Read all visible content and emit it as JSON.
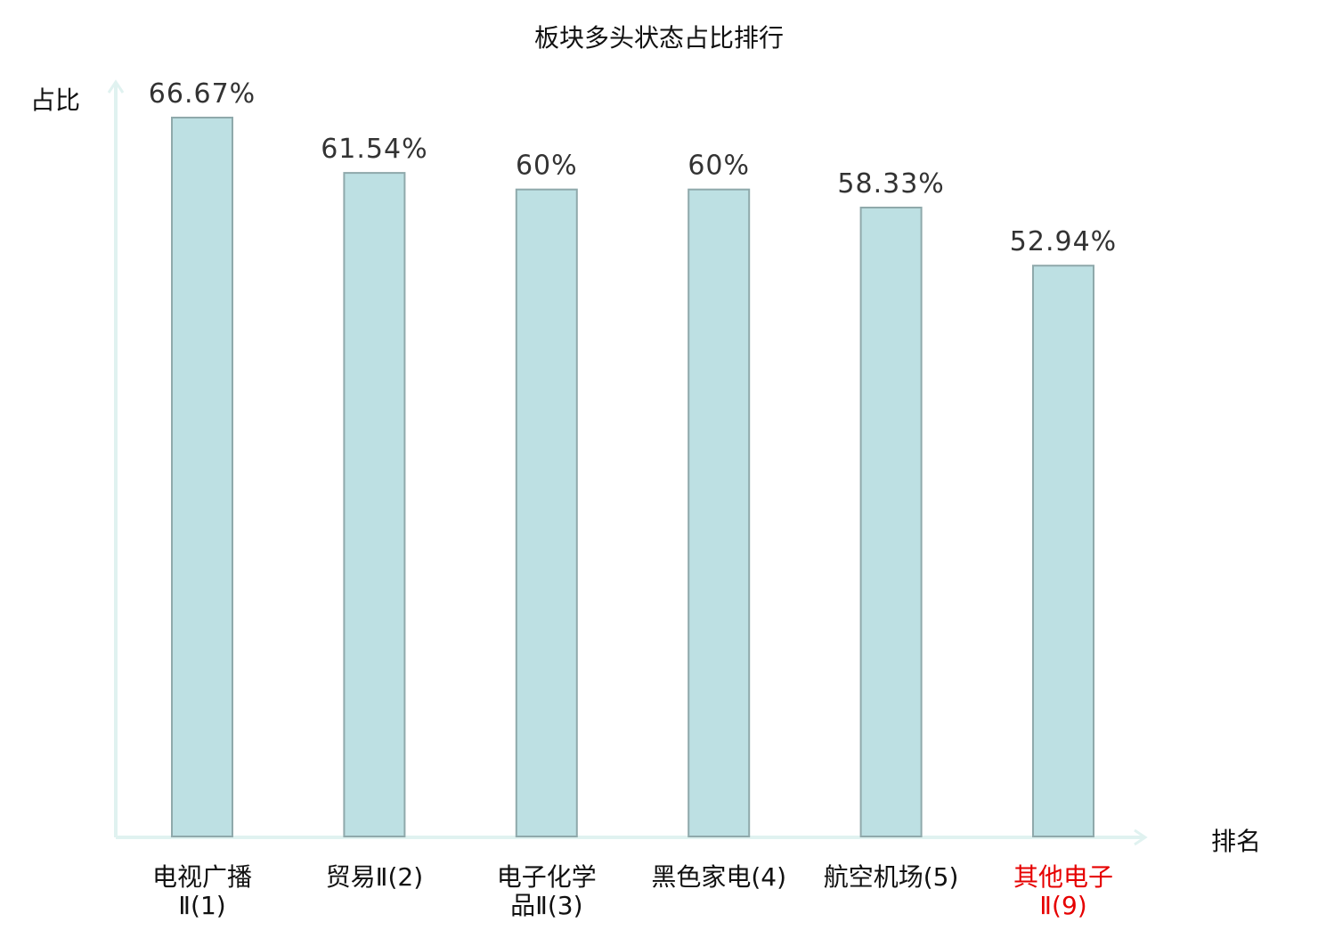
{
  "chart_data": {
    "type": "bar",
    "title": "板块多头状态占比排行",
    "xlabel": "排名",
    "ylabel": "占比",
    "ylim": [
      0,
      70
    ],
    "grid": false,
    "legend": "none",
    "categories": [
      {
        "name": "电视广播",
        "rank": "Ⅱ(1)",
        "line1": "电视广播",
        "line2": "Ⅱ(1)",
        "highlight": false
      },
      {
        "name": "贸易",
        "rank": "Ⅱ(2)",
        "line1": "贸易Ⅱ(2)",
        "line2": "",
        "highlight": false
      },
      {
        "name": "电子化学品",
        "rank": "Ⅱ(3)",
        "line1": "电子化学",
        "line2": "品Ⅱ(3)",
        "highlight": false
      },
      {
        "name": "黑色家电",
        "rank": "(4)",
        "line1": "黑色家电(4)",
        "line2": "",
        "highlight": false
      },
      {
        "name": "航空机场",
        "rank": "(5)",
        "line1": "航空机场(5)",
        "line2": "",
        "highlight": false
      },
      {
        "name": "其他电子",
        "rank": "Ⅱ(9)",
        "line1": "其他电子",
        "line2": "Ⅱ(9)",
        "highlight": true
      }
    ],
    "values": [
      66.67,
      61.54,
      60,
      60,
      58.33,
      52.94
    ],
    "value_labels": [
      "66.67%",
      "61.54%",
      "60%",
      "60%",
      "58.33%",
      "52.94%"
    ]
  },
  "colors": {
    "bar_fill": "#bde0e3",
    "bar_stroke": "#8fa9ab",
    "axis": "#e0f2f0",
    "text": "#111111",
    "value_text": "#333333",
    "highlight": "#e60000"
  }
}
